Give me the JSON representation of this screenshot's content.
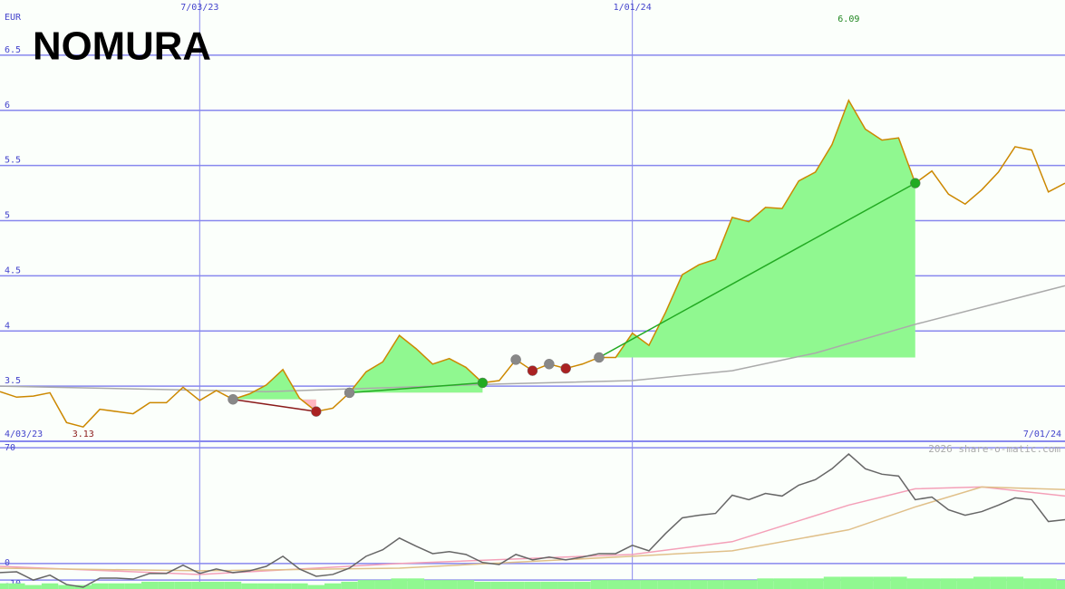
{
  "header": {
    "logo": "NOMURA",
    "currency": "EUR",
    "watermark": "2026 share-o-matic.com"
  },
  "chart_data": [
    {
      "type": "line",
      "x": [
        0,
        1,
        2,
        3,
        4,
        5,
        6,
        7,
        8,
        9,
        10,
        11,
        12,
        13,
        14,
        15,
        16,
        17,
        18,
        19,
        20,
        21,
        22,
        23,
        24,
        25,
        26,
        27,
        28,
        29,
        30,
        31,
        32,
        33,
        34,
        35,
        36,
        37,
        38,
        39,
        40,
        41,
        42,
        43,
        44,
        45,
        46,
        47,
        48,
        49,
        50,
        51,
        52,
        53,
        54,
        55,
        56,
        57,
        58,
        59,
        60,
        61,
        62,
        63,
        64
      ],
      "xlim": [
        0,
        64
      ],
      "xticks": [
        {
          "value": 0,
          "label": "4/03/23"
        },
        {
          "value": 12,
          "label": "7/03/23"
        },
        {
          "value": 38,
          "label": "1/01/24"
        },
        {
          "value": 64,
          "label": "7/01/24"
        }
      ],
      "ylim": [
        3,
        7
      ],
      "yticks": [
        3.5,
        4,
        4.5,
        5,
        5.5,
        6,
        6.5
      ],
      "grid": true,
      "series": [
        {
          "color": "#aaaaaa",
          "x": [
            0,
            16,
            30,
            38,
            44,
            49,
            55,
            64
          ],
          "values": [
            3.5,
            3.45,
            3.52,
            3.55,
            3.64,
            3.8,
            4.06,
            4.41
          ]
        },
        {
          "color": "#cc8800",
          "values": [
            3.45,
            3.4,
            3.41,
            3.44,
            3.17,
            3.13,
            3.29,
            3.27,
            3.25,
            3.35,
            3.35,
            3.49,
            3.37,
            3.46,
            3.38,
            3.43,
            3.51,
            3.65,
            3.39,
            3.27,
            3.3,
            3.44,
            3.63,
            3.72,
            3.96,
            3.84,
            3.7,
            3.75,
            3.67,
            3.53,
            3.55,
            3.74,
            3.64,
            3.7,
            3.66,
            3.7,
            3.76,
            3.76,
            3.98,
            3.87,
            4.17,
            4.51,
            4.6,
            4.65,
            5.03,
            4.99,
            5.12,
            5.11,
            5.36,
            5.44,
            5.69,
            6.09,
            5.83,
            5.73,
            5.75,
            5.34,
            5.45,
            5.24,
            5.15,
            5.28,
            5.44,
            5.67,
            5.64,
            5.26,
            5.34
          ]
        }
      ],
      "gain_fill": "#90f890",
      "loss_fill": "#ffb6c1",
      "trades": [
        {
          "from": 14,
          "to": 19,
          "color": "#8b1a1a"
        },
        {
          "from": 21,
          "to": 29,
          "color": "#22aa22"
        },
        {
          "from": 36,
          "to": 55,
          "color": "#22aa22"
        }
      ],
      "signals": [
        {
          "x": 14,
          "color": "#888888"
        },
        {
          "x": 19,
          "color": "#aa2222"
        },
        {
          "x": 21,
          "color": "#888888"
        },
        {
          "x": 29,
          "color": "#22aa22"
        },
        {
          "x": 31,
          "color": "#888888"
        },
        {
          "x": 32,
          "color": "#aa2222"
        },
        {
          "x": 33,
          "color": "#888888"
        },
        {
          "x": 34,
          "color": "#aa2222"
        },
        {
          "x": 36,
          "color": "#888888"
        },
        {
          "x": 55,
          "color": "#22aa22"
        }
      ],
      "max_label": {
        "value": 6.09,
        "color": "#228822"
      },
      "min_label": {
        "value": 3.13,
        "color": "#8b1a1a"
      }
    },
    {
      "type": "line",
      "xlim": [
        0,
        64
      ],
      "ylim": [
        -15.4,
        73.9
      ],
      "yticks": [
        70,
        0,
        -10
      ],
      "grid": true,
      "bars": {
        "color": "#90f890",
        "values": [
          -12,
          -12,
          -13,
          -12,
          -13,
          -13,
          -12,
          -12,
          -12,
          -11,
          -11,
          -11,
          -11,
          -11,
          -11,
          -12,
          -12,
          -12,
          -12,
          -13,
          -12,
          -11,
          -10,
          -10,
          -9,
          -9,
          -10,
          -10,
          -10,
          -11,
          -11,
          -11,
          -11,
          -11,
          -11,
          -11,
          -10,
          -10,
          -10,
          -10,
          -10,
          -10,
          -10,
          -10,
          -10,
          -10,
          -9,
          -9,
          -9,
          -9,
          -8,
          -8,
          -8,
          -8,
          -8,
          -9,
          -9,
          -9,
          -9,
          -8,
          -8,
          -8,
          -9,
          -9,
          -10
        ]
      },
      "series": [
        {
          "color": "#f4a0b8",
          "x": [
            0,
            12,
            24,
            38,
            44,
            51,
            55,
            59,
            64
          ],
          "values": [
            -1.7,
            -6.6,
            0,
            5.5,
            13.2,
            35.3,
            45.2,
            46.3,
            40.8
          ]
        },
        {
          "color": "#e0c08a",
          "x": [
            0,
            12,
            24,
            38,
            44,
            51,
            55,
            59,
            64
          ],
          "values": [
            -2.8,
            -4.4,
            -2.8,
            4.4,
            7.7,
            20.4,
            34.2,
            46.3,
            44.7
          ]
        },
        {
          "color": "#666666",
          "x": [
            0,
            1,
            2,
            3,
            4,
            5,
            6,
            7,
            8,
            9,
            10,
            11,
            12,
            13,
            14,
            15,
            16,
            17,
            18,
            19,
            20,
            21,
            22,
            23,
            24,
            25,
            26,
            27,
            28,
            29,
            30,
            31,
            32,
            33,
            34,
            35,
            36,
            37,
            38,
            39,
            40,
            41,
            42,
            43,
            44,
            45,
            46,
            47,
            48,
            49,
            50,
            51,
            52,
            53,
            54,
            55,
            56,
            57,
            58,
            59,
            60,
            61,
            62,
            63,
            64
          ],
          "values": [
            -5.5,
            -5,
            -10,
            -7,
            -12.7,
            -14.3,
            -8.8,
            -8.8,
            -9.4,
            -6,
            -6,
            -1,
            -6,
            -3.3,
            -5.5,
            -4.4,
            -1.7,
            4.4,
            -3.3,
            -7.7,
            -6.6,
            -2.8,
            4.4,
            8.3,
            15.4,
            10.5,
            6,
            7.2,
            5.5,
            0.6,
            -0.6,
            5.5,
            2.2,
            3.9,
            2.2,
            3.9,
            6,
            6,
            11,
            7.7,
            18.2,
            27.6,
            29.2,
            30.3,
            41.3,
            38.6,
            42.4,
            40.8,
            47.4,
            50.7,
            57.3,
            66.2,
            57.3,
            54,
            52.9,
            38.6,
            40.2,
            32.5,
            29.2,
            31.4,
            35.3,
            39.7,
            38.6,
            25.4,
            26.5
          ]
        }
      ]
    }
  ]
}
